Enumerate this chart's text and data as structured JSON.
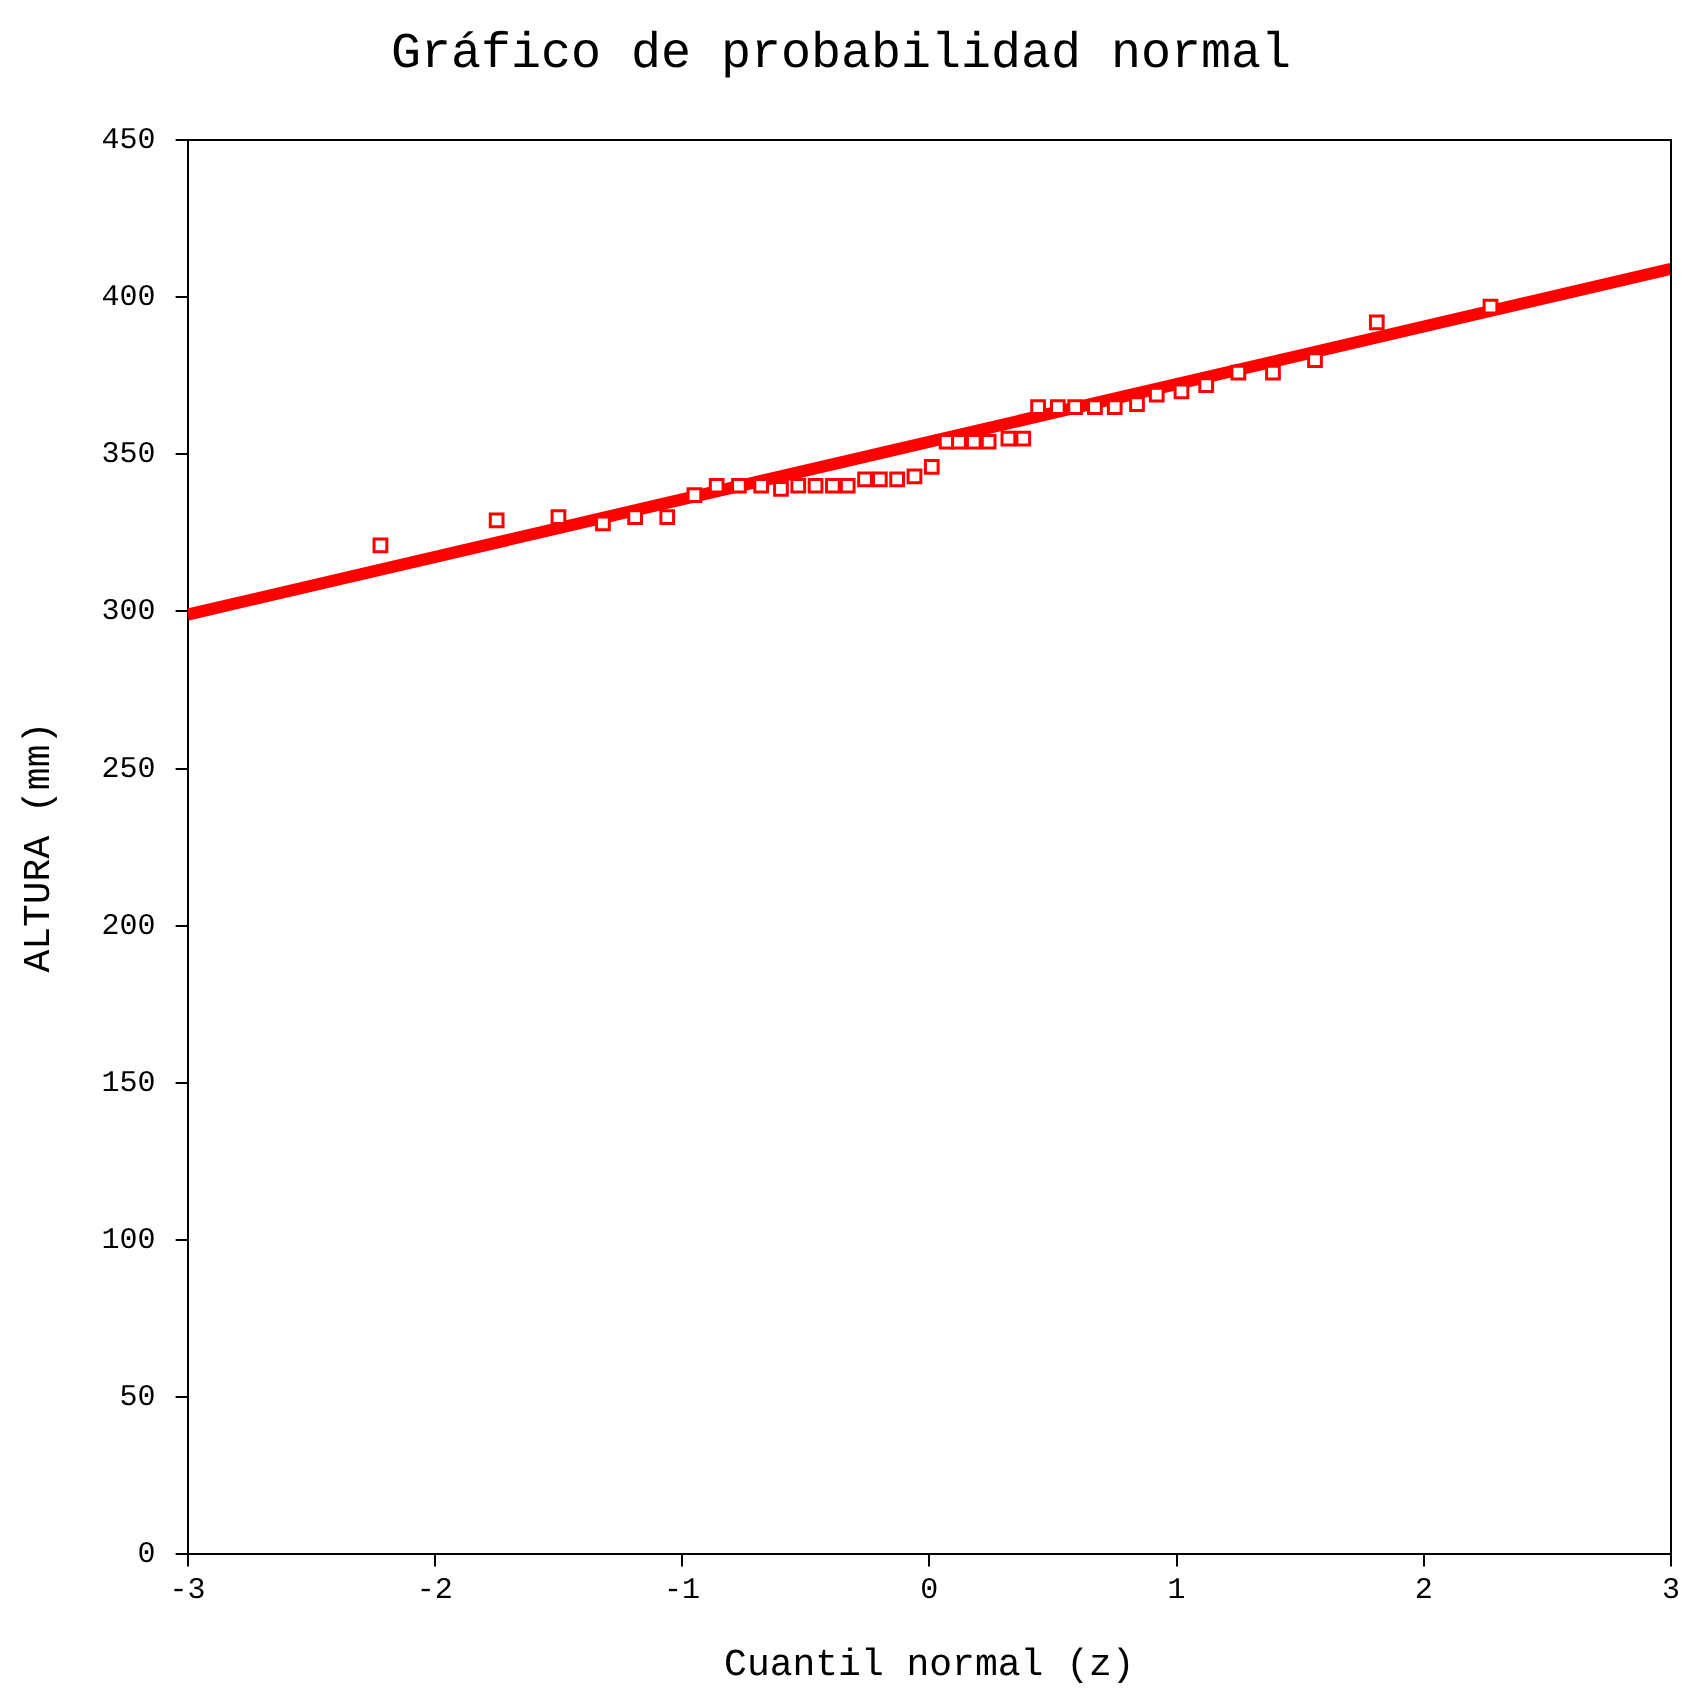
{
  "chart_data": {
    "type": "scatter",
    "title": "Gráfico de probabilidad normal",
    "xlabel": "Cuantil normal (z)",
    "ylabel": "ALTURA (mm)",
    "xlim": [
      -3,
      3
    ],
    "xticks": [
      -3,
      -2,
      -1,
      0,
      1,
      2,
      3
    ],
    "ylim": [
      0,
      450
    ],
    "yticks": [
      0,
      50,
      100,
      150,
      200,
      250,
      300,
      350,
      400,
      450
    ],
    "grid": false,
    "legend": false,
    "marker": "square",
    "series": [
      {
        "color": "#ff0000",
        "x": [
          -2.22,
          -1.75,
          -1.5,
          -1.32,
          -1.19,
          -1.06,
          -0.95,
          -0.86,
          -0.77,
          -0.68,
          -0.6,
          -0.53,
          -0.46,
          -0.39,
          -0.33,
          -0.26,
          -0.2,
          -0.13,
          -0.06,
          0.01,
          0.07,
          0.12,
          0.18,
          0.24,
          0.32,
          0.38,
          0.44,
          0.52,
          0.59,
          0.67,
          0.75,
          0.84,
          0.92,
          1.02,
          1.12,
          1.25,
          1.39,
          1.56,
          1.81,
          2.27
        ],
        "values": [
          321,
          329,
          330,
          328,
          330,
          330,
          337,
          340,
          340,
          340,
          339,
          340,
          340,
          340,
          340,
          342,
          342,
          342,
          343,
          346,
          354,
          354,
          354,
          354,
          355,
          355,
          365,
          365,
          365,
          365,
          365,
          366,
          369,
          370,
          372,
          376,
          376,
          380,
          392,
          397
        ]
      },
      {
        "type": "line",
        "color": "#ff0000",
        "marker": "none",
        "x": [
          -3,
          3
        ],
        "values": [
          299,
          409
        ]
      }
    ]
  }
}
